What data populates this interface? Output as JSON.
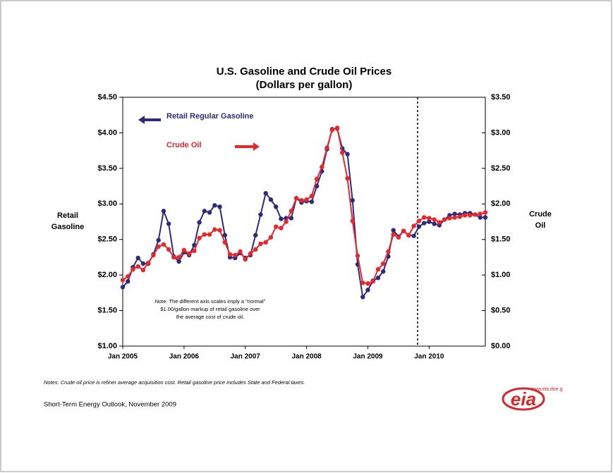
{
  "chart_data": {
    "type": "line",
    "title": "U.S. Gasoline and Crude Oil Prices",
    "subtitle": "(Dollars per gallon)",
    "ylabel": [
      "Retail",
      "Gasoline"
    ],
    "y2label": [
      "Crude",
      "Oil"
    ],
    "categories": [
      "Jan 2005",
      null,
      null,
      null,
      null,
      null,
      null,
      null,
      null,
      null,
      null,
      null,
      "Jan 2006",
      null,
      null,
      null,
      null,
      null,
      null,
      null,
      null,
      null,
      null,
      null,
      "Jan 2007",
      null,
      null,
      null,
      null,
      null,
      null,
      null,
      null,
      null,
      null,
      null,
      "Jan 2008",
      null,
      null,
      null,
      null,
      null,
      null,
      null,
      null,
      null,
      null,
      null,
      "Jan 2009",
      null,
      null,
      null,
      null,
      null,
      null,
      null,
      null,
      null,
      null,
      null,
      "Jan 2010",
      null,
      null,
      null,
      null,
      null,
      null,
      null,
      null,
      null,
      null,
      null
    ],
    "series": [
      {
        "name": "Retail Regular Gasoline",
        "color": "#2b2d7c",
        "axis": "y",
        "values": [
          1.83,
          1.91,
          2.11,
          2.24,
          2.16,
          2.16,
          2.29,
          2.49,
          2.9,
          2.72,
          2.26,
          2.19,
          2.32,
          2.28,
          2.42,
          2.74,
          2.9,
          2.88,
          2.98,
          2.96,
          2.56,
          2.25,
          2.24,
          2.31,
          2.24,
          2.28,
          2.56,
          2.85,
          3.15,
          3.06,
          2.96,
          2.79,
          2.8,
          2.8,
          3.08,
          3.02,
          3.04,
          3.03,
          3.25,
          3.46,
          3.77,
          4.05,
          4.06,
          3.78,
          3.7,
          3.05,
          2.15,
          1.69,
          1.79,
          1.92,
          1.96,
          2.05,
          2.26,
          2.63,
          2.54,
          2.62,
          2.56,
          2.55,
          2.68,
          2.73,
          2.75,
          2.72,
          2.7,
          2.78,
          2.84,
          2.86,
          2.85,
          2.87,
          2.87,
          2.85,
          2.81,
          2.81
        ]
      },
      {
        "name": "Crude Oil",
        "color": "#e8262c",
        "axis": "y2",
        "values": [
          0.93,
          0.98,
          1.08,
          1.12,
          1.07,
          1.17,
          1.28,
          1.4,
          1.43,
          1.36,
          1.25,
          1.25,
          1.35,
          1.3,
          1.34,
          1.52,
          1.57,
          1.57,
          1.64,
          1.63,
          1.46,
          1.29,
          1.28,
          1.33,
          1.22,
          1.3,
          1.36,
          1.44,
          1.46,
          1.53,
          1.68,
          1.66,
          1.75,
          1.9,
          2.08,
          2.05,
          2.06,
          2.11,
          2.35,
          2.52,
          2.79,
          3.04,
          3.07,
          2.72,
          2.36,
          1.76,
          1.27,
          0.89,
          0.88,
          0.91,
          1.08,
          1.16,
          1.33,
          1.57,
          1.53,
          1.62,
          1.56,
          1.69,
          1.76,
          1.81,
          1.8,
          1.78,
          1.74,
          1.78,
          1.8,
          1.81,
          1.82,
          1.84,
          1.84,
          1.85,
          1.86,
          1.88
        ]
      }
    ],
    "ylim": [
      1.0,
      4.5
    ],
    "yticks": [
      {
        "value": 1.0,
        "label": "$1.00"
      },
      {
        "value": 1.5,
        "label": "$1.50"
      },
      {
        "value": 2.0,
        "label": "$2.00"
      },
      {
        "value": 2.5,
        "label": "$2.50"
      },
      {
        "value": 3.0,
        "label": "$3.00"
      },
      {
        "value": 3.5,
        "label": "$3.50"
      },
      {
        "value": 4.0,
        "label": "$4.00"
      },
      {
        "value": 4.5,
        "label": "$4.50"
      }
    ],
    "y2lim": [
      0.0,
      3.5
    ],
    "y2ticks": [
      {
        "value": 0.0,
        "label": "$0.00"
      },
      {
        "value": 0.5,
        "label": "$0.50"
      },
      {
        "value": 1.0,
        "label": "$1.00"
      },
      {
        "value": 1.5,
        "label": "$1.50"
      },
      {
        "value": 2.0,
        "label": "$2.00"
      },
      {
        "value": 2.5,
        "label": "$2.50"
      },
      {
        "value": 3.0,
        "label": "$3.00"
      },
      {
        "value": 3.5,
        "label": "$3.50"
      }
    ],
    "grid": false,
    "note": [
      "Note: The different axis scales imply a \"normal\"",
      "$1.00/gallon markup of retail gasoline over",
      "the average cost of crude oil."
    ]
  },
  "footer": {
    "notes": "Notes: Crude oil price is refiner average acquisition cost.  Retail gasoline price includes State and Federal taxes.",
    "source": "Short-Term Energy Outlook, November 2009",
    "logo": "eia",
    "logo_url": "www.eia.doe.g"
  }
}
